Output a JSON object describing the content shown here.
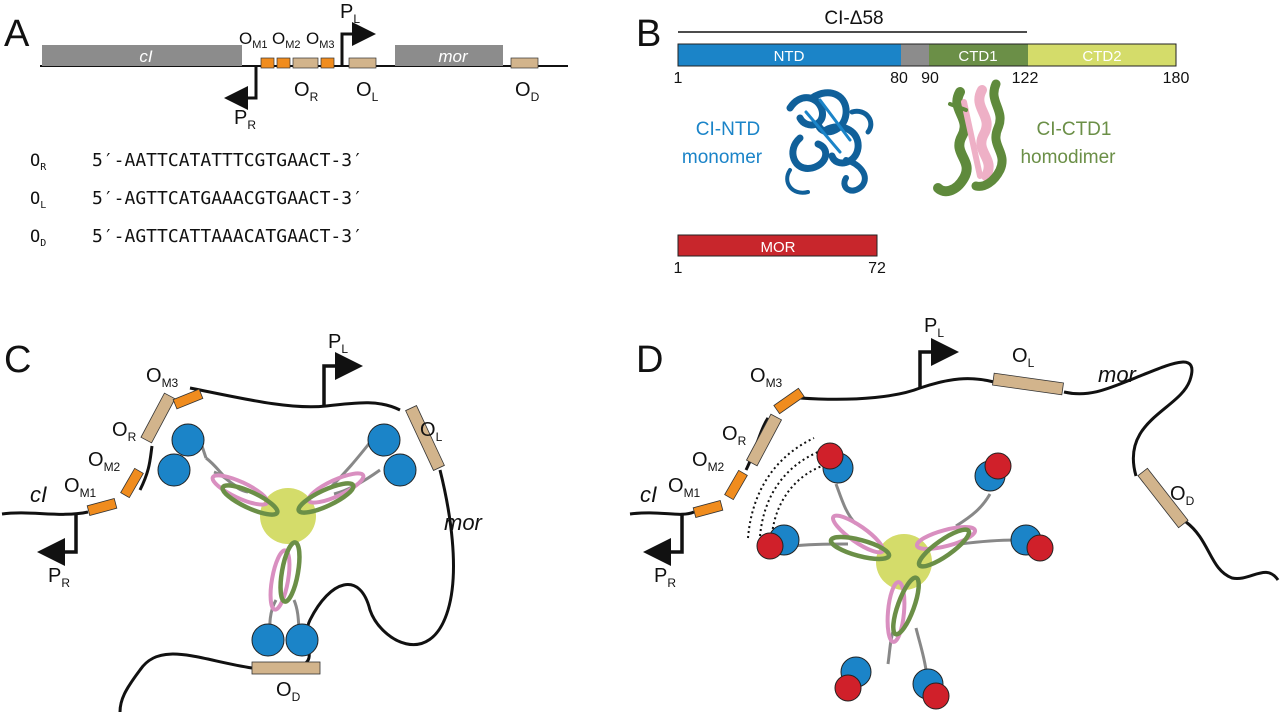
{
  "panels": {
    "a": "A",
    "b": "B",
    "c": "C",
    "d": "D"
  },
  "panel_a": {
    "genes": {
      "cI": "cI",
      "mor": "mor"
    },
    "operators": {
      "OM1": {
        "main": "O",
        "sub": "M1"
      },
      "OM2": {
        "main": "O",
        "sub": "M2"
      },
      "OM3": {
        "main": "O",
        "sub": "M3"
      },
      "OR": {
        "main": "O",
        "sub": "R"
      },
      "OL": {
        "main": "O",
        "sub": "L"
      },
      "OD": {
        "main": "O",
        "sub": "D"
      }
    },
    "promoters": {
      "PL": {
        "main": "P",
        "sub": "L"
      },
      "PR": {
        "main": "P",
        "sub": "R"
      }
    },
    "sequences": [
      {
        "main": "O",
        "sub": "R",
        "seq": "5′-AATTCATATTTCGTGAACT-3′"
      },
      {
        "main": "O",
        "sub": "L",
        "seq": "5′-AGTTCATGAAACGTGAACT-3′"
      },
      {
        "main": "O",
        "sub": "D",
        "seq": "5′-AGTTCATTAAACATGAACT-3′"
      }
    ]
  },
  "panel_b": {
    "construct": "CI-Δ58",
    "domains": [
      {
        "name": "NTD",
        "color": "#1b84c8"
      },
      {
        "name": "",
        "color": "#8c8c8c"
      },
      {
        "name": "CTD1",
        "color": "#6b8f47"
      },
      {
        "name": "CTD2",
        "color": "#d4dc6a"
      }
    ],
    "ticks": [
      "1",
      "80",
      "90",
      "122",
      "180"
    ],
    "ntd_label_1": "CI-NTD",
    "ntd_label_2": "monomer",
    "ctd_label_1": "CI-CTD1",
    "ctd_label_2": "homodimer",
    "mor_bar": "MOR",
    "mor_color": "#c8262c",
    "mor_ticks": [
      "1",
      "72"
    ]
  },
  "panel_c": {
    "cI": "cI",
    "mor": "mor",
    "OM1": {
      "main": "O",
      "sub": "M1"
    },
    "OM2": {
      "main": "O",
      "sub": "M2"
    },
    "OM3": {
      "main": "O",
      "sub": "M3"
    },
    "OR": {
      "main": "O",
      "sub": "R"
    },
    "OL": {
      "main": "O",
      "sub": "L"
    },
    "OD": {
      "main": "O",
      "sub": "D"
    },
    "PL": {
      "main": "P",
      "sub": "L"
    },
    "PR": {
      "main": "P",
      "sub": "R"
    }
  },
  "panel_d": {
    "cI": "cI",
    "mor": "mor",
    "OM1": {
      "main": "O",
      "sub": "M1"
    },
    "OM2": {
      "main": "O",
      "sub": "M2"
    },
    "OM3": {
      "main": "O",
      "sub": "M3"
    },
    "OR": {
      "main": "O",
      "sub": "R"
    },
    "OL": {
      "main": "O",
      "sub": "L"
    },
    "OD": {
      "main": "O",
      "sub": "D"
    },
    "PL": {
      "main": "P",
      "sub": "L"
    },
    "PR": {
      "main": "P",
      "sub": "R"
    }
  },
  "colors": {
    "gene_box": "#8c8c8c",
    "operator_orange": "#f08c1e",
    "operator_tan": "#d2b48c",
    "ntd_blue": "#1b84c8",
    "mor_red": "#d0202a",
    "ctd1_green": "#6b8f47",
    "ctd2_yellow": "#d4dc6a",
    "pink": "#d98fc0"
  }
}
